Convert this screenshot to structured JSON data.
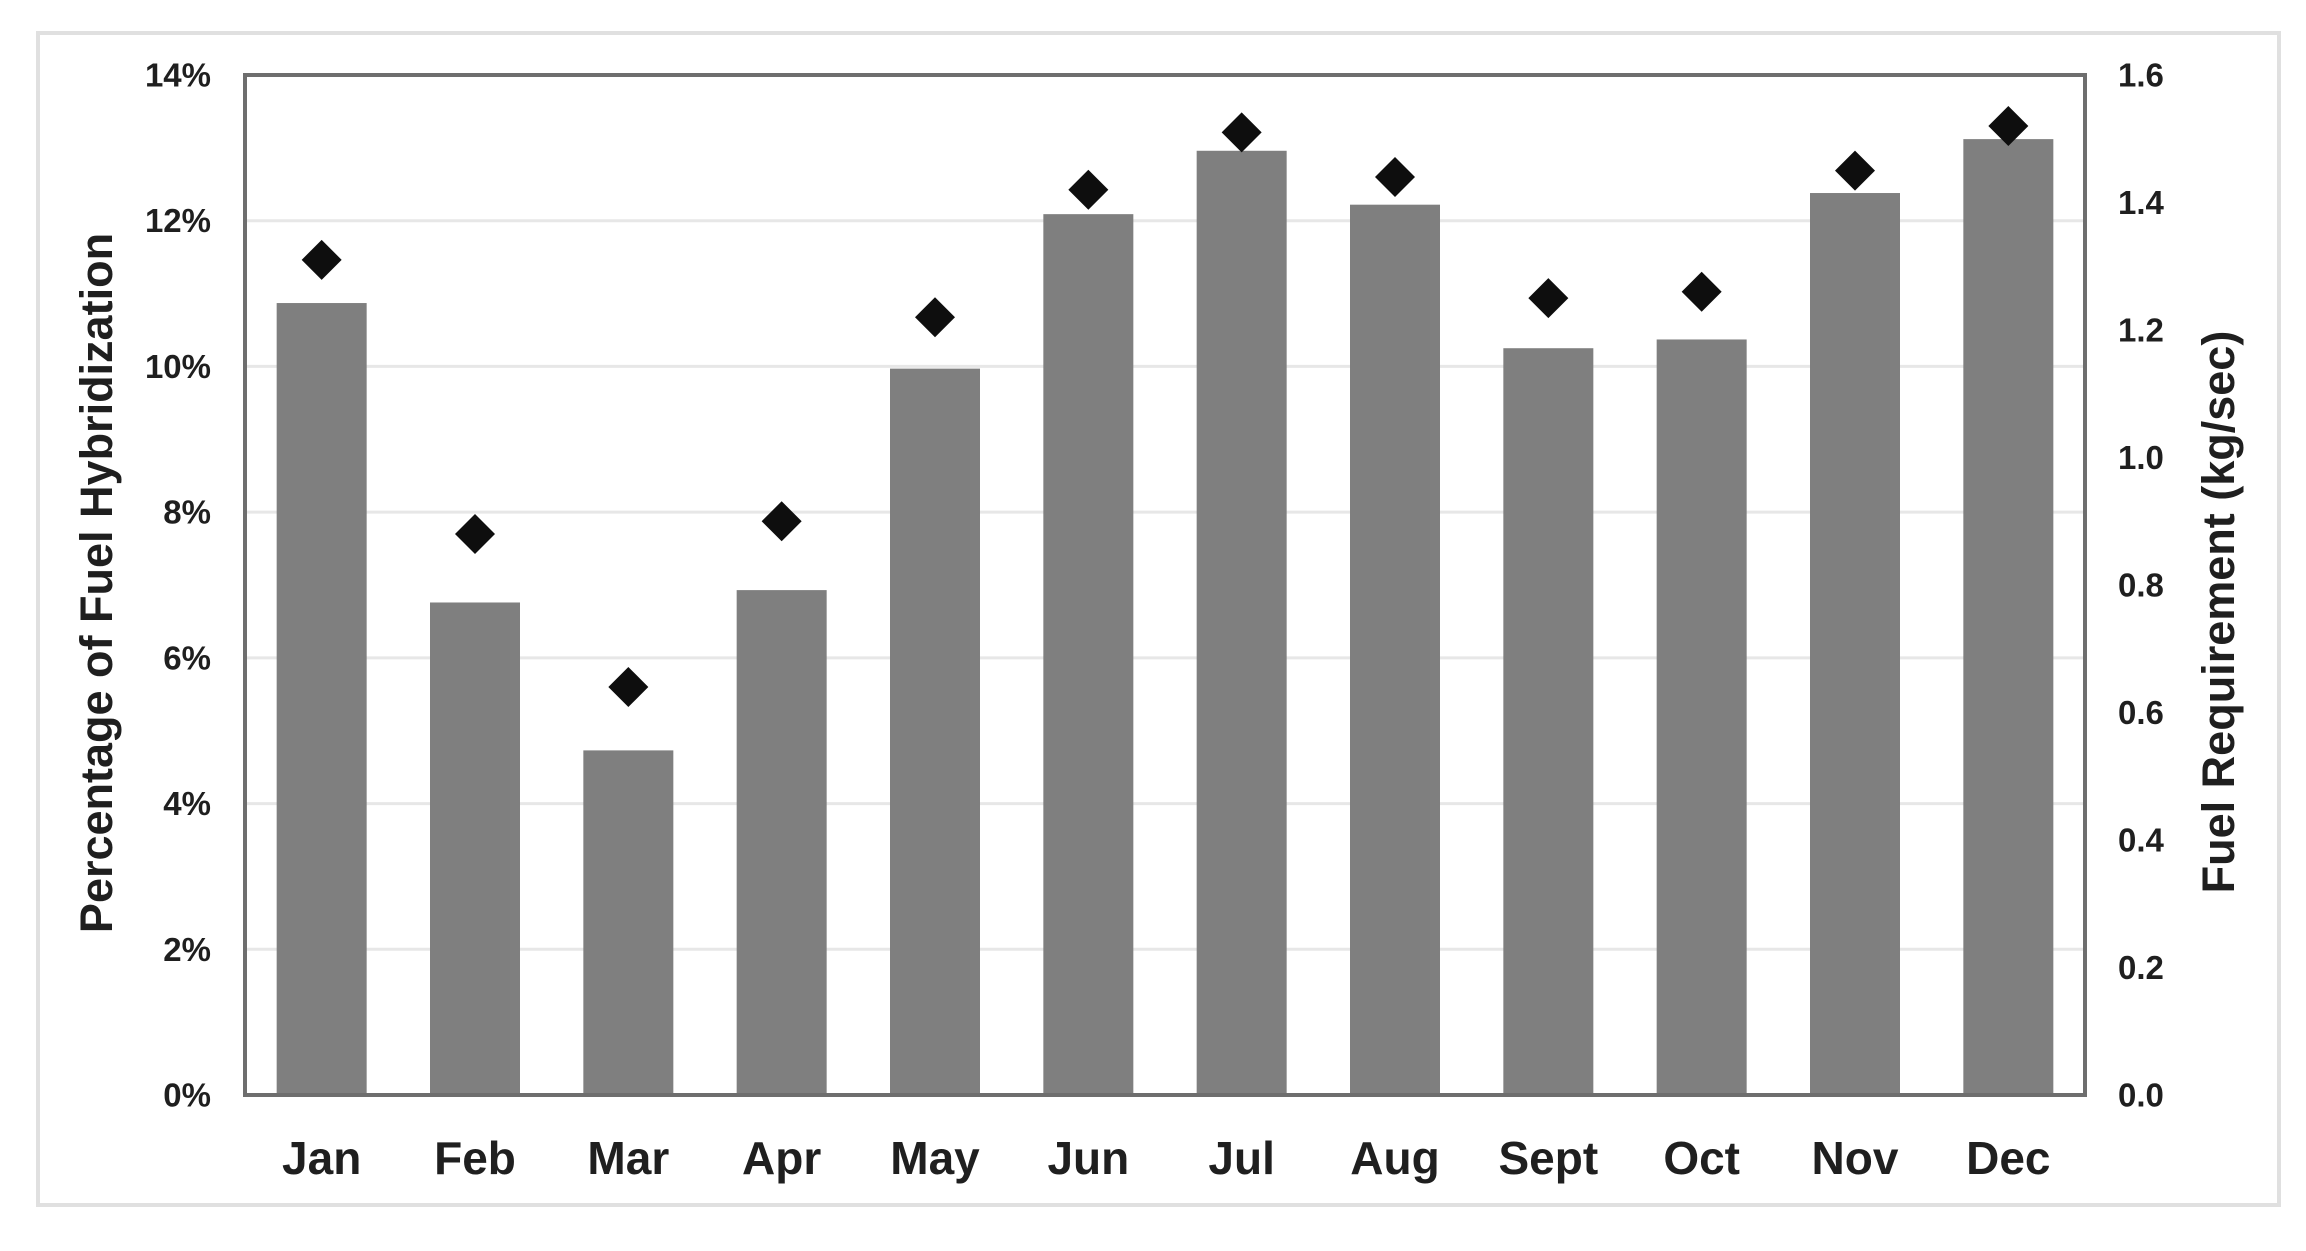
{
  "chart_data": {
    "type": "bar",
    "subtype": "combo-bar-scatter",
    "title": "",
    "categories": [
      "Jan",
      "Feb",
      "Mar",
      "Apr",
      "May",
      "Jun",
      "Jul",
      "Aug",
      "Sept",
      "Oct",
      "Nov",
      "Dec"
    ],
    "series": [
      {
        "name": "Percentage of Fuel Hybridization",
        "type": "bar",
        "axis": "left",
        "unit": "%",
        "color": "#7f7f7f",
        "values": [
          10.87,
          6.76,
          4.73,
          6.93,
          9.97,
          12.09,
          12.96,
          12.22,
          10.25,
          10.37,
          12.38,
          13.12
        ]
      },
      {
        "name": "Fuel Requirement",
        "type": "scatter",
        "marker": "diamond",
        "axis": "right",
        "unit": "kg/sec",
        "color": "#0e0e0e",
        "values": [
          1.31,
          0.88,
          0.64,
          0.9,
          1.22,
          1.42,
          1.51,
          1.44,
          1.25,
          1.26,
          1.45,
          1.52
        ]
      }
    ],
    "left_axis": {
      "title": "Percentage of Fuel Hybridization",
      "min": 0,
      "max": 14,
      "step": 2,
      "tick_labels": [
        "0%",
        "2%",
        "4%",
        "6%",
        "8%",
        "10%",
        "12%",
        "14%"
      ]
    },
    "right_axis": {
      "title": "Fuel Requirement (kg/sec)",
      "min": 0,
      "max": 1.6,
      "step": 0.2,
      "tick_labels": [
        "0.0",
        "0.2",
        "0.4",
        "0.6",
        "0.8",
        "1.0",
        "1.2",
        "1.4",
        "1.6"
      ]
    },
    "grid": {
      "horizontal": true,
      "vertical": false,
      "color": "#e7e7e7"
    },
    "legend_position": "none",
    "styles": {
      "background": "#ffffff",
      "figure_border": "#e0e0e0",
      "plot_border": "#6e6e6e",
      "text_color": "#1f1f1f",
      "bar_color": "#7f7f7f",
      "marker_color": "#0e0e0e"
    }
  }
}
